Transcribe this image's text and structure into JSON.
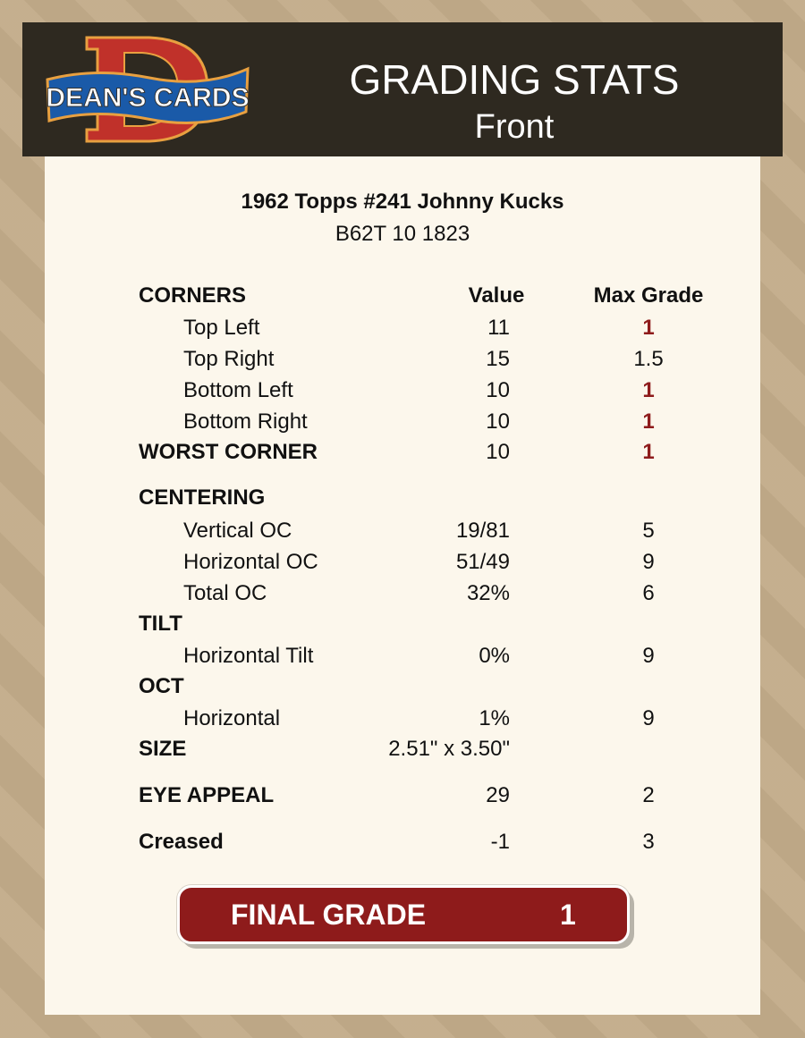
{
  "header": {
    "logo_text": "DEAN'S CARDS",
    "title": "GRADING STATS",
    "subtitle": "Front"
  },
  "card": {
    "name": "1962 Topps #241 Johnny Kucks",
    "code": "B62T 10 1823"
  },
  "columns": {
    "value": "Value",
    "max_grade": "Max Grade"
  },
  "colors": {
    "accent_red": "#8e1b1b",
    "header_bg": "#2e2920",
    "panel_bg": "#fcf7ec"
  },
  "rows": [
    {
      "label": "CORNERS",
      "section": true
    },
    {
      "label": "Top Left",
      "value": "11",
      "max_grade": "1",
      "highlight": true
    },
    {
      "label": "Top Right",
      "value": "15",
      "max_grade": "1.5"
    },
    {
      "label": "Bottom Left",
      "value": "10",
      "max_grade": "1",
      "highlight": true
    },
    {
      "label": "Bottom Right",
      "value": "10",
      "max_grade": "1",
      "highlight": true
    },
    {
      "label": "WORST CORNER",
      "section": true,
      "value": "10",
      "max_grade": "1",
      "highlight": true
    },
    {
      "label": "CENTERING",
      "section": true
    },
    {
      "label": "Vertical OC",
      "value": "19/81",
      "max_grade": "5"
    },
    {
      "label": "Horizontal OC",
      "value": "51/49",
      "max_grade": "9"
    },
    {
      "label": "Total OC",
      "value": "32%",
      "max_grade": "6"
    },
    {
      "label": "TILT",
      "section": true
    },
    {
      "label": "Horizontal Tilt",
      "value": "0%",
      "max_grade": "9"
    },
    {
      "label": "OCT",
      "section": true
    },
    {
      "label": "Horizontal",
      "value": "1%",
      "max_grade": "9"
    },
    {
      "label": "SIZE",
      "section": true,
      "value": "2.51\" x 3.50\""
    },
    {
      "label": "EYE APPEAL",
      "section": true,
      "value": "29",
      "max_grade": "2"
    },
    {
      "label": "Creased",
      "section": true,
      "value": "-1",
      "max_grade": "3"
    }
  ],
  "final": {
    "label": "FINAL GRADE",
    "value": "1"
  }
}
